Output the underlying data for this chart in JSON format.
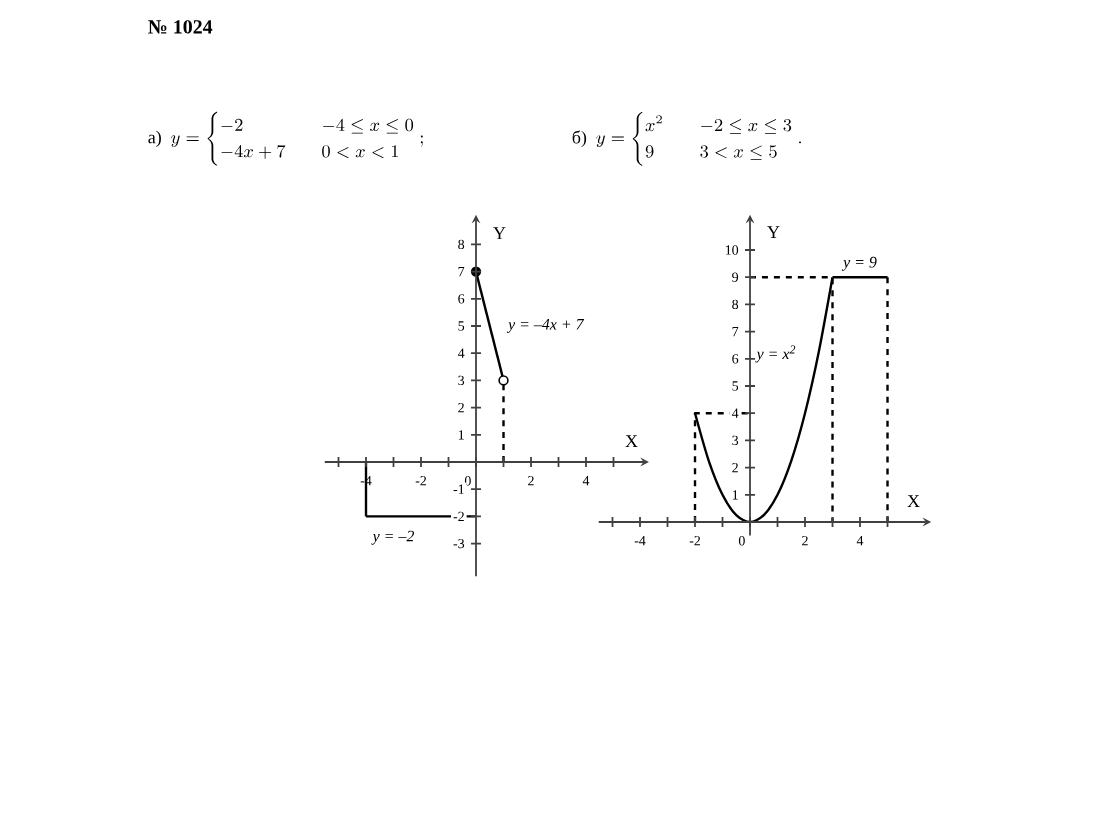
{
  "chart_data": [
    {
      "type": "line",
      "title": "\\text{а)}\\ \\ y=\\begin{cases}-2 & \\quad -4\\le x\\le 0\\\\ -4x+7 & \\quad 0<x<1\\end{cases};",
      "xlabel": "X",
      "ylabel": "Y",
      "xlim": [
        -5.5,
        6
      ],
      "ylim": [
        -4.2,
        8.8
      ],
      "xticks": [
        {
          "value": -5,
          "label": null
        },
        -4,
        {
          "value": -3,
          "label": null
        },
        -2,
        {
          "value": -1,
          "label": null
        },
        0,
        {
          "value": 1,
          "label": null
        },
        2,
        {
          "value": 3,
          "label": null
        },
        4,
        {
          "value": 5,
          "label": null
        }
      ],
      "yticks": [
        -3,
        -2,
        -1,
        {
          "value": 0,
          "label": null
        },
        1,
        2,
        3,
        4,
        5,
        6,
        7,
        8
      ],
      "series": [
        {
          "type": "line",
          "color": "#000000",
          "line_style": "solid",
          "x": [
            -4,
            0
          ],
          "values": [
            -2,
            -2
          ]
        },
        {
          "type": "line",
          "color": "#000000",
          "line_style": "solid",
          "x": [
            0,
            1
          ],
          "values": [
            7,
            3
          ]
        },
        {
          "type": "line",
          "color": "#000000",
          "line_style": "solid",
          "x": [
            -4,
            -4
          ],
          "values": [
            0,
            -2
          ]
        },
        {
          "type": "line",
          "color": "#000000",
          "line_style": "dashed",
          "x": [
            1,
            1
          ],
          "values": [
            0,
            3
          ]
        },
        {
          "type": "scatter",
          "color": "#000000",
          "marker": "circle",
          "x": [
            0
          ],
          "values": [
            7
          ]
        },
        {
          "type": "scatter",
          "color": "#ffffff",
          "marker": "circle",
          "x": [
            1
          ],
          "values": [
            3
          ]
        }
      ],
      "annotations": [
        "№ 1024",
        {
          "text": "y = –4x + 7",
          "x": 0.5,
          "y": 5
        },
        {
          "text": "y = –2",
          "x": -3,
          "y": -2
        }
      ]
    },
    {
      "type": "line",
      "title": "\\text{б)}\\ \\ y=\\begin{cases}x^2 & \\quad -2\\le x\\le 3\\\\ 9 & \\quad 3<x\\le 5\\end{cases}.",
      "xlabel": "X",
      "ylabel": "Y",
      "xlim": [
        -5.5,
        6.3
      ],
      "ylim": [
        -0.5,
        11
      ],
      "xticks": [
        {
          "value": -5,
          "label": null
        },
        -4,
        {
          "value": -3,
          "label": null
        },
        -2,
        {
          "value": -1,
          "label": null
        },
        0,
        {
          "value": 1,
          "label": null
        },
        2,
        {
          "value": 3,
          "label": null
        },
        4,
        {
          "value": 5,
          "label": null
        }
      ],
      "yticks": [
        {
          "value": 0,
          "label": null
        },
        1,
        2,
        3,
        4,
        5,
        6,
        7,
        8,
        9,
        10
      ],
      "series": [
        {
          "type": "line",
          "color": "#000000",
          "line_style": "solid",
          "x": [
            -2,
            -1.5,
            -1,
            -0.5,
            0,
            0.5,
            1,
            1.5,
            2,
            2.5,
            3
          ],
          "values": [
            4,
            2.25,
            1,
            0.25,
            0,
            0.25,
            1,
            2.25,
            4,
            6.25,
            9
          ]
        },
        {
          "type": "line",
          "color": "#000000",
          "line_style": "solid",
          "x": [
            3,
            5
          ],
          "values": [
            9,
            9
          ]
        },
        {
          "type": "line",
          "color": "#000000",
          "line_style": "dashed",
          "x": [
            -2,
            -2,
            0
          ],
          "values": [
            0,
            4,
            4
          ]
        },
        {
          "type": "line",
          "color": "#000000",
          "line_style": "dashed",
          "x": [
            0,
            3,
            3
          ],
          "values": [
            9,
            9,
            0
          ]
        },
        {
          "type": "line",
          "color": "#000000",
          "line_style": "dashed",
          "x": [
            5,
            5
          ],
          "values": [
            9,
            0
          ]
        }
      ],
      "annotations": [
        {
          "text": "y = x$^{2}$",
          "x": 2.5,
          "y": 6.25
        },
        {
          "text": "y = 9",
          "x": 4,
          "y": 9
        }
      ]
    }
  ]
}
